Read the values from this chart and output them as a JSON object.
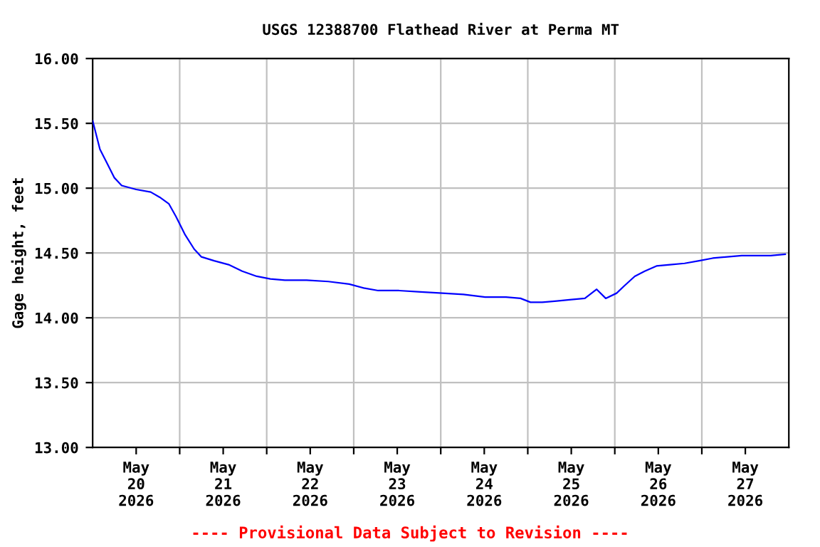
{
  "chart_data": {
    "type": "line",
    "title": "USGS 12388700 Flathead River at Perma MT",
    "ylabel": "Gage height, feet",
    "annotations": [
      "---- Provisional Data Subject to Revision ----"
    ],
    "x": [
      "2026-05-20T00:00",
      "2026-05-20T02:00",
      "2026-05-20T04:00",
      "2026-05-20T06:00",
      "2026-05-20T08:00",
      "2026-05-20T12:00",
      "2026-05-20T16:00",
      "2026-05-20T18:30",
      "2026-05-20T21:00",
      "2026-05-20T23:00",
      "2026-05-21T01:30",
      "2026-05-21T04:00",
      "2026-05-21T06:00",
      "2026-05-21T09:30",
      "2026-05-21T13:30",
      "2026-05-21T17:15",
      "2026-05-21T21:15",
      "2026-05-22T01:00",
      "2026-05-22T05:00",
      "2026-05-22T11:00",
      "2026-05-22T17:00",
      "2026-05-22T22:45",
      "2026-05-23T02:45",
      "2026-05-23T06:45",
      "2026-05-23T12:30",
      "2026-05-23T18:30",
      "2026-05-24T00:30",
      "2026-05-24T06:15",
      "2026-05-24T12:15",
      "2026-05-24T18:00",
      "2026-05-24T22:00",
      "2026-05-25T00:45",
      "2026-05-25T04:00",
      "2026-05-25T08:00",
      "2026-05-25T12:00",
      "2026-05-25T15:45",
      "2026-05-25T19:00",
      "2026-05-25T21:30",
      "2026-05-26T00:30",
      "2026-05-26T02:45",
      "2026-05-26T05:30",
      "2026-05-26T08:15",
      "2026-05-26T11:30",
      "2026-05-26T15:15",
      "2026-05-26T19:15",
      "2026-05-26T23:15",
      "2026-05-27T03:00",
      "2026-05-27T07:00",
      "2026-05-27T11:00",
      "2026-05-27T15:00",
      "2026-05-27T19:00",
      "2026-05-27T23:00"
    ],
    "series": [
      {
        "color": "#0000ff",
        "values": [
          15.52,
          15.3,
          15.19,
          15.08,
          15.02,
          14.99,
          14.97,
          14.93,
          14.88,
          14.78,
          14.64,
          14.53,
          14.47,
          14.44,
          14.41,
          14.36,
          14.32,
          14.3,
          14.29,
          14.29,
          14.28,
          14.26,
          14.23,
          14.21,
          14.21,
          14.2,
          14.19,
          14.18,
          14.16,
          14.16,
          14.15,
          14.12,
          14.12,
          14.13,
          14.14,
          14.15,
          14.22,
          14.15,
          14.19,
          14.25,
          14.32,
          14.36,
          14.4,
          14.41,
          14.42,
          14.44,
          14.46,
          14.47,
          14.48,
          14.48,
          14.48,
          14.49
        ]
      }
    ],
    "xlim": [
      "2026-05-20T00:00",
      "2026-05-28T00:00"
    ],
    "xticks": [
      {
        "value": "2026-05-20T12:00",
        "label": "May\n20\n2026"
      },
      {
        "value": "2026-05-21T12:00",
        "label": "May\n21\n2026"
      },
      {
        "value": "2026-05-22T12:00",
        "label": "May\n22\n2026"
      },
      {
        "value": "2026-05-23T12:00",
        "label": "May\n23\n2026"
      },
      {
        "value": "2026-05-24T12:00",
        "label": "May\n24\n2026"
      },
      {
        "value": "2026-05-25T12:00",
        "label": "May\n25\n2026"
      },
      {
        "value": "2026-05-26T12:00",
        "label": "May\n26\n2026"
      },
      {
        "value": "2026-05-27T12:00",
        "label": "May\n27\n2026"
      },
      {
        "value": "2026-05-21T00:00",
        "label": null
      },
      {
        "value": "2026-05-22T00:00",
        "label": null
      },
      {
        "value": "2026-05-23T00:00",
        "label": null
      },
      {
        "value": "2026-05-24T00:00",
        "label": null
      },
      {
        "value": "2026-05-25T00:00",
        "label": null
      },
      {
        "value": "2026-05-26T00:00",
        "label": null
      },
      {
        "value": "2026-05-27T00:00",
        "label": null
      }
    ],
    "ylim": [
      13,
      16
    ],
    "yticks": [
      {
        "value": 13,
        "label": "13.00"
      },
      {
        "value": 13.5,
        "label": "13.50"
      },
      {
        "value": 14,
        "label": "14.00"
      },
      {
        "value": 14.5,
        "label": "14.50"
      },
      {
        "value": 15,
        "label": "15.00"
      },
      {
        "value": 15.5,
        "label": "15.50"
      },
      {
        "value": 16,
        "label": "16.00"
      }
    ],
    "grid": true,
    "marker": "none",
    "line_style": "solid"
  }
}
